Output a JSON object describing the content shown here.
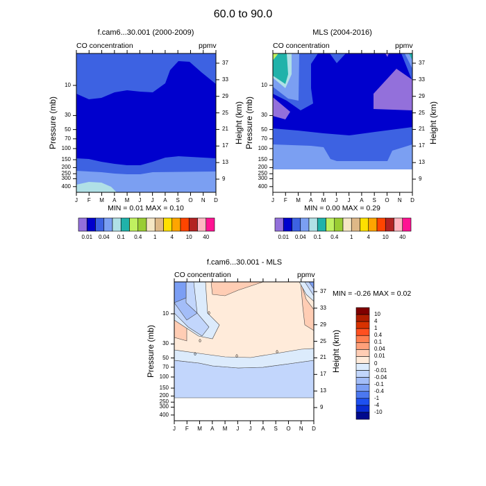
{
  "title": "60.0 to  90.0",
  "months": [
    "J",
    "F",
    "M",
    "A",
    "M",
    "J",
    "J",
    "A",
    "S",
    "O",
    "N",
    "D"
  ],
  "pressure_ticks": [
    10,
    30,
    50,
    70,
    100,
    150,
    200,
    250,
    300,
    400
  ],
  "height_ticks": [
    37,
    33,
    29,
    25,
    21,
    17,
    13,
    9
  ],
  "chart_data": [
    {
      "type": "heatmap",
      "subtype": "filled contour",
      "title": "f.cam6...30.001 (2000-2009)",
      "left_label": "CO concentration",
      "right_label": "ppmv",
      "xlabel": "",
      "ylabel": "Pressure (mb)",
      "ylabel_right": "Height (km)",
      "y_scale": "log",
      "stats": "MIN =   0.01  MAX =   0.10",
      "min": 0.01,
      "max": 0.1,
      "colorbar_labels": [
        "0.01",
        "0.04",
        "0.1",
        "0.4",
        "1",
        "4",
        "10",
        "40"
      ],
      "colors": [
        "#9370db",
        "#0000cd",
        "#3d62e2",
        "#7b9ff2",
        "#b0e0e6",
        "#20b2aa",
        "#c0f060",
        "#9acd32",
        "#f5e6c4",
        "#deb887",
        "#ffe000",
        "#ffa500",
        "#ff4500",
        "#b22222",
        "#ffb6c1",
        "#ff1493"
      ]
    },
    {
      "type": "heatmap",
      "subtype": "filled contour",
      "title": "MLS (2004-2016)",
      "left_label": "CO concentration",
      "right_label": "ppmv",
      "xlabel": "",
      "ylabel": "Pressure (mb)",
      "ylabel_right": "Height (km)",
      "y_scale": "log",
      "stats": "MIN =   0.00  MAX =   0.29",
      "min": 0.0,
      "max": 0.29,
      "colorbar_labels": [
        "0.01",
        "0.04",
        "0.1",
        "0.4",
        "1",
        "4",
        "10",
        "40"
      ],
      "colors": [
        "#9370db",
        "#0000cd",
        "#3d62e2",
        "#7b9ff2",
        "#b0e0e6",
        "#20b2aa",
        "#c0f060",
        "#9acd32",
        "#f5e6c4",
        "#deb887",
        "#ffe000",
        "#ffa500",
        "#ff4500",
        "#b22222",
        "#ffb6c1",
        "#ff1493"
      ]
    },
    {
      "type": "heatmap",
      "subtype": "filled contour with lines",
      "title": "f.cam6...30.001 - MLS",
      "left_label": "CO concentration",
      "right_label": "ppmv",
      "xlabel": "",
      "ylabel": "Pressure (mb)",
      "ylabel_right": "Height (km)",
      "y_scale": "log",
      "stats": "MIN = -0.26  MAX =   0.02",
      "min": -0.26,
      "max": 0.02,
      "contour_labels": [
        "0"
      ],
      "colorbar_labels": [
        "10",
        "4",
        "1",
        "0.4",
        "0.1",
        "0.04",
        "0.01",
        "0",
        "-0.01",
        "-0.04",
        "-0.1",
        "-0.4",
        "-1",
        "-4",
        "-10"
      ],
      "colors": [
        "#800000",
        "#b01e00",
        "#d83200",
        "#ff5020",
        "#ff7f50",
        "#ffa07a",
        "#ffcdb4",
        "#ffebda",
        "#dcebfc",
        "#c2d6fc",
        "#a3bdf8",
        "#7b9ef4",
        "#4c78f0",
        "#1e50f0",
        "#0a2cd2",
        "#000a8c"
      ]
    }
  ]
}
